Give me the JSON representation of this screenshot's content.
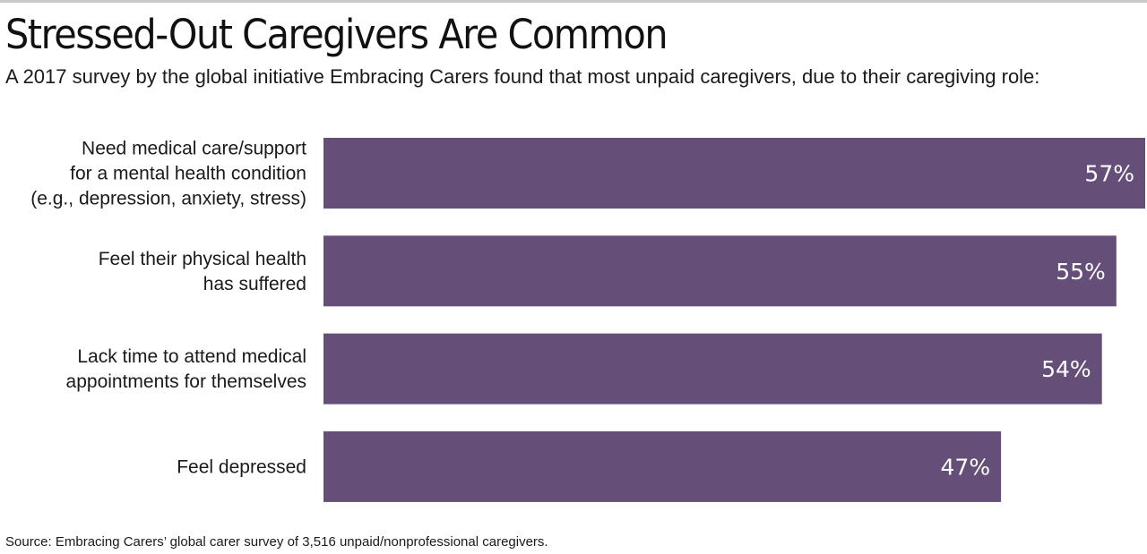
{
  "title": "Stressed-Out Caregivers Are Common",
  "subtitle": "A 2017 survey by the global initiative Embracing Carers found that most unpaid caregivers, due to their caregiving role:",
  "source": "Source: Embracing Carers’ global carer survey of 3,516 unpaid/nonprofessional caregivers.",
  "colors": {
    "bar": "#654e78",
    "value_text": "#ffffff"
  },
  "chart_data": {
    "type": "bar",
    "orientation": "horizontal",
    "categories": [
      [
        "Need medical care/support",
        "for a mental health condition",
        "(e.g., depression, anxiety, stress)"
      ],
      [
        "Feel their physical health",
        "has suffered"
      ],
      [
        "Lack time to attend medical",
        "appointments for themselves"
      ],
      [
        "Feel depressed"
      ]
    ],
    "values": [
      57,
      55,
      54,
      47
    ],
    "value_labels": [
      "57%",
      "55%",
      "54%",
      "47%"
    ],
    "unit": "%",
    "xlim": [
      0,
      57
    ],
    "grid": false,
    "legend": "none"
  }
}
